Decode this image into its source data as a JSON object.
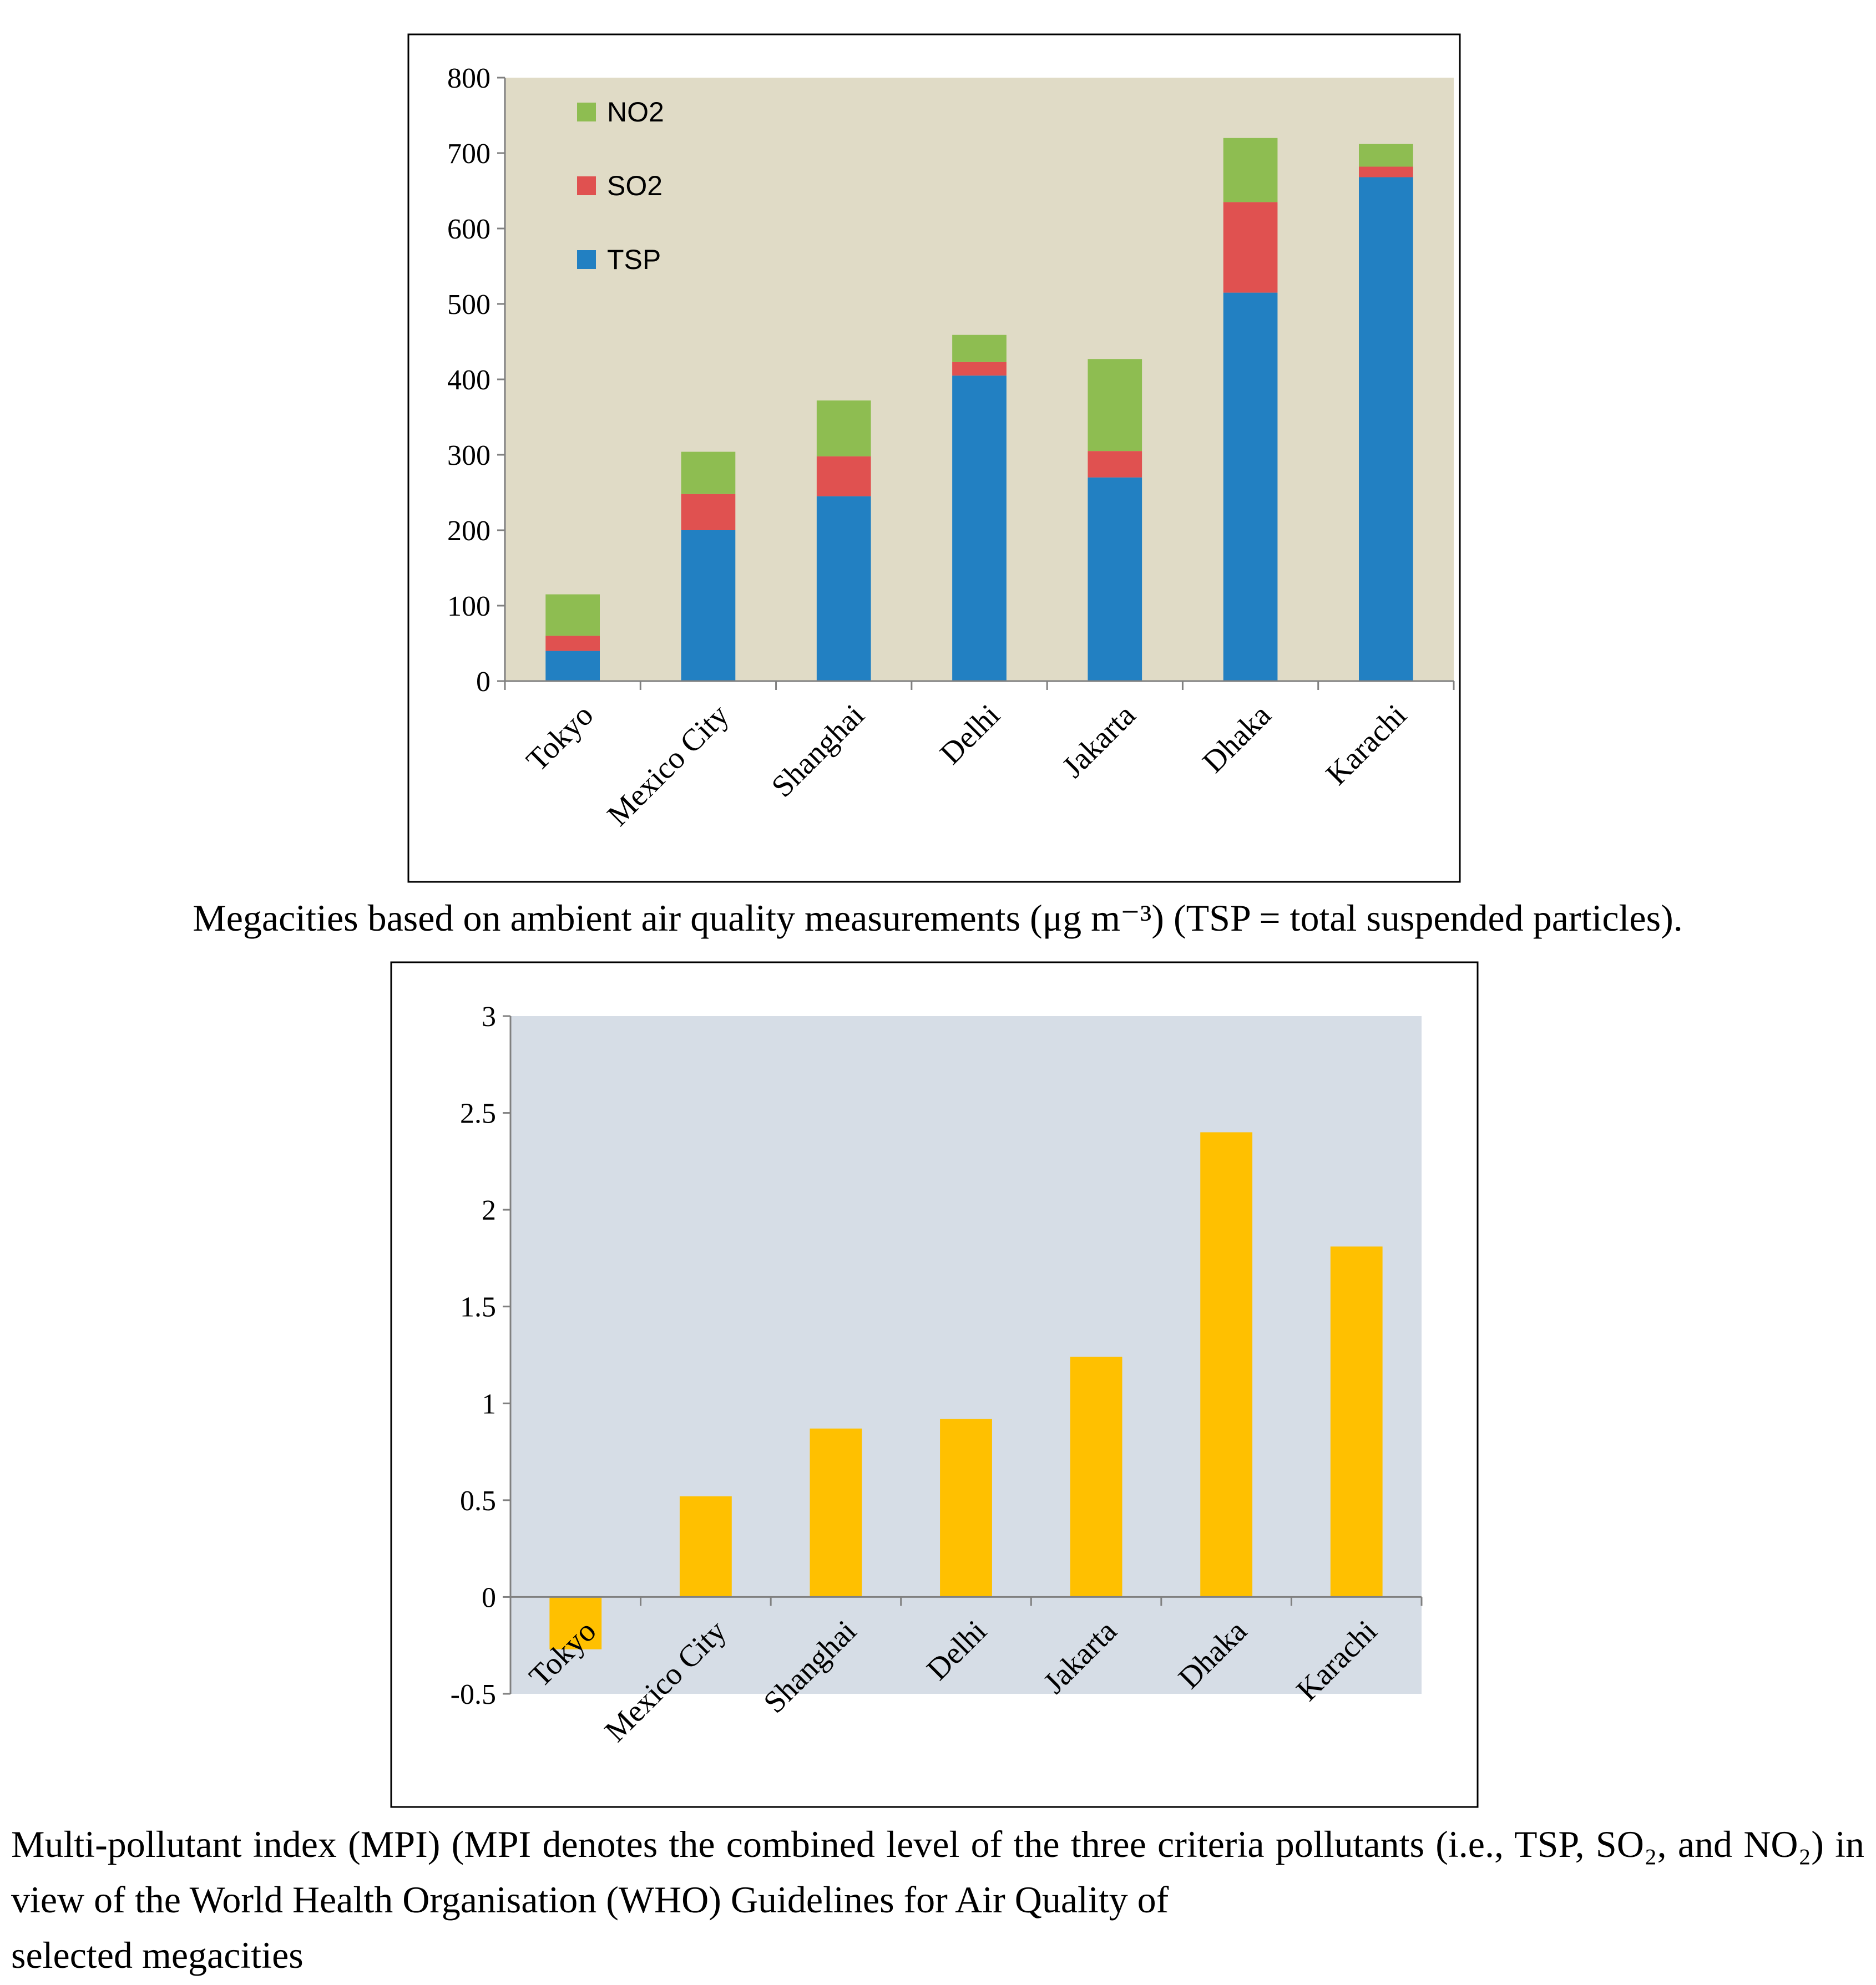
{
  "colors": {
    "tsp": "#2280c2",
    "so2": "#e05150",
    "no2": "#8ebd51",
    "mpi": "#ffc000",
    "plot_bg_1": "#e0dbc6",
    "plot_bg_2": "#d6dde6"
  },
  "chart_data": [
    {
      "type": "bar",
      "stacked": true,
      "title": "",
      "xlabel": "",
      "ylabel": "",
      "ylim": [
        0,
        800
      ],
      "yticks": [
        0,
        100,
        200,
        300,
        400,
        500,
        600,
        700,
        800
      ],
      "grid": false,
      "legend_position": "top-left",
      "legend_order": [
        "NO2",
        "SO2",
        "TSP"
      ],
      "categories": [
        "Tokyo",
        "Mexico City",
        "Shanghai",
        "Delhi",
        "Jakarta",
        "Dhaka",
        "Karachi"
      ],
      "series": [
        {
          "name": "TSP",
          "values": [
            40,
            200,
            245,
            405,
            270,
            515,
            668
          ]
        },
        {
          "name": "SO2",
          "values": [
            20,
            48,
            53,
            18,
            35,
            120,
            14
          ]
        },
        {
          "name": "NO2",
          "values": [
            55,
            56,
            74,
            36,
            122,
            85,
            30
          ]
        }
      ]
    },
    {
      "type": "bar",
      "title": "",
      "xlabel": "",
      "ylabel": "",
      "ylim": [
        -0.5,
        3
      ],
      "yticks": [
        -0.5,
        0,
        0.5,
        1,
        1.5,
        2,
        2.5,
        3
      ],
      "grid": false,
      "categories": [
        "Tokyo",
        "Mexico City",
        "Shanghai",
        "Delhi",
        "Jakarta",
        "Dhaka",
        "Karachi"
      ],
      "series": [
        {
          "name": "MPI",
          "values": [
            -0.27,
            0.52,
            0.87,
            0.92,
            1.24,
            2.4,
            1.81
          ]
        }
      ]
    }
  ],
  "captions": {
    "fig1": "Megacities based on ambient air quality measurements (μg m⁻³) (TSP = total suspended particles).",
    "fig2_main": "Multi-pollutant index (MPI) (MPI denotes the combined level of the three criteria pollutants (i.e., TSP, SO₂, and NO₂) in view of the World Health Organisation (WHO) Guidelines for Air Quality of",
    "fig2_last": "selected megacities"
  }
}
